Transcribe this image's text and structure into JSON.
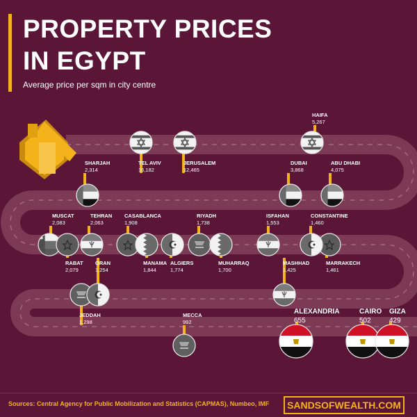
{
  "header": {
    "title_line1": "PROPERTY PRICES",
    "title_line2": "IN EGYPT",
    "subtitle": "Average price per sqm in city centre"
  },
  "footer": {
    "sources": "Sources: Central Agency for Public Mobilization and Statistics (CAPMAS), Numbeo, IMF",
    "brand": "SANDSOFWEALTH.COM"
  },
  "colors": {
    "background": "#5a1537",
    "road": "#7c3a55",
    "accent": "#f5b31b",
    "marker_gray": "#5c5c5c"
  },
  "icons": {
    "house": "house-icon"
  },
  "chart_data": {
    "type": "table",
    "title": "PROPERTY PRICES IN EGYPT",
    "subtitle": "Average price per sqm in city centre",
    "columns": [
      "city",
      "price",
      "flag"
    ],
    "rows": [
      {
        "city": "TEL AVIV",
        "value": 16182,
        "value_label": "16,182",
        "flag": "israel"
      },
      {
        "city": "JERUSALEM",
        "value": 12465,
        "value_label": "12,465",
        "flag": "israel"
      },
      {
        "city": "HAIFA",
        "value": 5267,
        "value_label": "5,267",
        "flag": "israel"
      },
      {
        "city": "ABU DHABI",
        "value": 4075,
        "value_label": "4,075",
        "flag": "uae"
      },
      {
        "city": "DUBAI",
        "value": 3868,
        "value_label": "3,868",
        "flag": "uae"
      },
      {
        "city": "SHARJAH",
        "value": 2314,
        "value_label": "2,314",
        "flag": "uae"
      },
      {
        "city": "MUSCAT",
        "value": 2083,
        "value_label": "2,083",
        "flag": "oman"
      },
      {
        "city": "RABAT",
        "value": 2079,
        "value_label": "2,079",
        "flag": "morocco"
      },
      {
        "city": "TEHRAN",
        "value": 2063,
        "value_label": "2,063",
        "flag": "iran"
      },
      {
        "city": "CASABLANCA",
        "value": 1908,
        "value_label": "1,908",
        "flag": "morocco"
      },
      {
        "city": "MANAMA",
        "value": 1844,
        "value_label": "1,844",
        "flag": "bahrain"
      },
      {
        "city": "ALGIERS",
        "value": 1774,
        "value_label": "1,774",
        "flag": "algeria"
      },
      {
        "city": "RIYADH",
        "value": 1738,
        "value_label": "1,738",
        "flag": "saudi"
      },
      {
        "city": "MUHARRAQ",
        "value": 1700,
        "value_label": "1,700",
        "flag": "bahrain"
      },
      {
        "city": "ISFAHAN",
        "value": 1553,
        "value_label": "1,553",
        "flag": "iran"
      },
      {
        "city": "MARRAKECH",
        "value": 1461,
        "value_label": "1,461",
        "flag": "morocco"
      },
      {
        "city": "CONSTANTINE",
        "value": 1460,
        "value_label": "1,460",
        "flag": "algeria"
      },
      {
        "city": "MASHHAD",
        "value": 1425,
        "value_label": "1,425",
        "flag": "iran"
      },
      {
        "city": "JEDDAH",
        "value": 1298,
        "value_label": "1,298",
        "flag": "saudi"
      },
      {
        "city": "ORAN",
        "value": 1254,
        "value_label": "1,254",
        "flag": "algeria"
      },
      {
        "city": "MECCA",
        "value": 992,
        "value_label": "992",
        "flag": "saudi"
      },
      {
        "city": "ALEXANDRIA",
        "value": 655,
        "value_label": "655",
        "flag": "egypt",
        "highlight": true
      },
      {
        "city": "CAIRO",
        "value": 502,
        "value_label": "502",
        "flag": "egypt",
        "highlight": true
      },
      {
        "city": "GIZA",
        "value": 429,
        "value_label": "429",
        "flag": "egypt",
        "highlight": true
      }
    ]
  }
}
